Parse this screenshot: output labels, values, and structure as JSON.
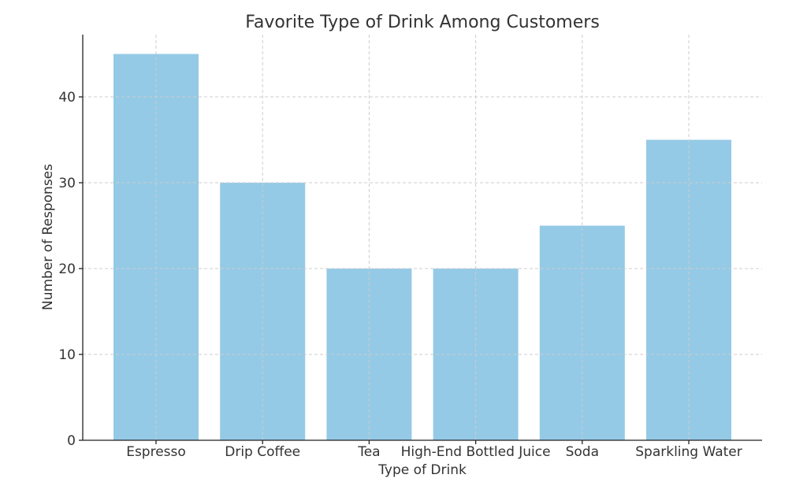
{
  "chart_data": {
    "type": "bar",
    "title": "Favorite Type of Drink Among Customers",
    "xlabel": "Type of Drink",
    "ylabel": "Number of Responses",
    "categories": [
      "Espresso",
      "Drip Coffee",
      "Tea",
      "High-End Bottled Juice",
      "Soda",
      "Sparkling Water"
    ],
    "values": [
      45,
      30,
      20,
      20,
      25,
      35
    ],
    "ylim": [
      0,
      47.25
    ],
    "yticks": [
      0,
      10,
      20,
      30,
      40
    ],
    "grid": true,
    "bar_color": "#94cae6"
  }
}
